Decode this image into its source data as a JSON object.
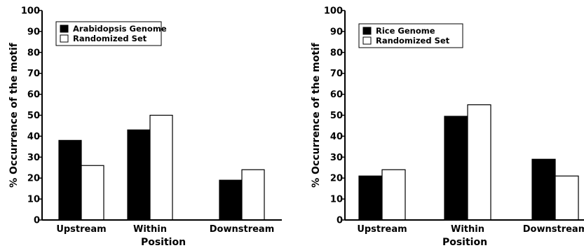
{
  "chart_data": [
    {
      "type": "bar",
      "categories": [
        "Upstream",
        "Within",
        "Downstream"
      ],
      "series": [
        {
          "name": "Arabidopsis Genome",
          "values": [
            38,
            43,
            19
          ],
          "color": "#000000"
        },
        {
          "name": "Randomized Set",
          "values": [
            26,
            50,
            24
          ],
          "color": "#ffffff"
        }
      ],
      "xlabel": "Position",
      "ylabel": "% Occurrence of the motif",
      "ylim": [
        0,
        100
      ],
      "yticks": [
        "0",
        "10",
        "20",
        "30",
        "40",
        "50",
        "60",
        "70",
        "80",
        "90",
        "100"
      ],
      "grid": false,
      "legend_position": "top-left"
    },
    {
      "type": "bar",
      "categories": [
        "Upstream",
        "Within",
        "Downstream"
      ],
      "series": [
        {
          "name": "Rice Genome",
          "values": [
            21,
            49.5,
            29
          ],
          "color": "#000000"
        },
        {
          "name": "Randomized Set",
          "values": [
            24,
            55,
            21
          ],
          "color": "#ffffff"
        }
      ],
      "xlabel": "Position",
      "ylabel": "% Occurrence of the motif",
      "ylim": [
        0,
        100
      ],
      "yticks": [
        "0",
        "10",
        "20",
        "30",
        "40",
        "50",
        "60",
        "70",
        "80",
        "90",
        "100"
      ],
      "grid": false,
      "legend_position": "top-left"
    }
  ]
}
